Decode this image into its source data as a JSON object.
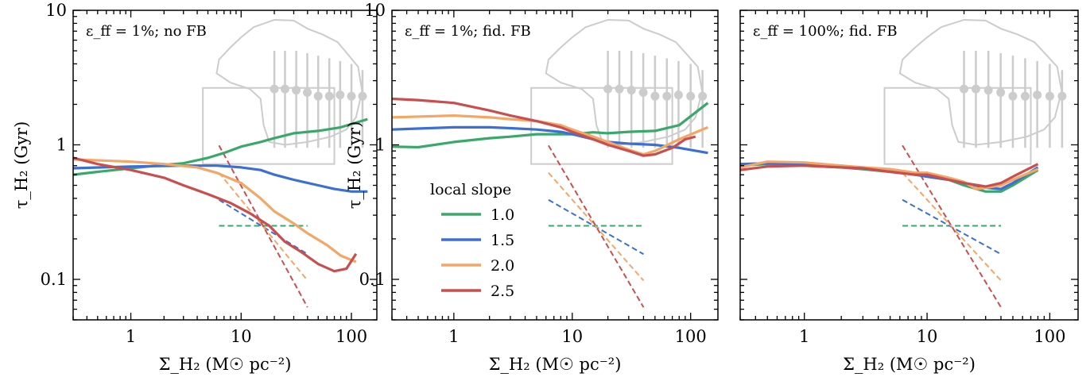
{
  "chart_data": [
    {
      "type": "line",
      "label": "ε_ff = 1%; no FB",
      "xlabel": "Σ_H₂ (M☉ pc⁻²)",
      "ylabel": "τ_H₂ (Gyr)",
      "xscale": "log",
      "yscale": "log",
      "xlim": [
        0.3,
        170
      ],
      "ylim": [
        0.05,
        10
      ],
      "x_ticks": [
        1,
        10,
        100
      ],
      "x_tick_labels": [
        "1",
        "10",
        "100"
      ],
      "y_ticks": [
        0.1,
        1,
        10
      ],
      "y_tick_labels": [
        "0.1",
        "1",
        "10"
      ],
      "series": [
        {
          "slope": "1.0",
          "color": "#3aa86b",
          "points": [
            [
              0.3,
              0.6
            ],
            [
              0.5,
              0.63
            ],
            [
              1,
              0.67
            ],
            [
              2,
              0.71
            ],
            [
              3,
              0.73
            ],
            [
              5,
              0.8
            ],
            [
              7,
              0.87
            ],
            [
              10,
              0.97
            ],
            [
              15,
              1.05
            ],
            [
              20,
              1.12
            ],
            [
              30,
              1.22
            ],
            [
              50,
              1.27
            ],
            [
              80,
              1.35
            ],
            [
              140,
              1.55
            ]
          ]
        },
        {
          "slope": "1.5",
          "color": "#3b6fd6",
          "points": [
            [
              0.3,
              0.67
            ],
            [
              1,
              0.69
            ],
            [
              3,
              0.7
            ],
            [
              6,
              0.7
            ],
            [
              10,
              0.68
            ],
            [
              15,
              0.65
            ],
            [
              20,
              0.6
            ],
            [
              30,
              0.55
            ],
            [
              50,
              0.5
            ],
            [
              70,
              0.47
            ],
            [
              100,
              0.45
            ],
            [
              140,
              0.45
            ]
          ]
        },
        {
          "slope": "2.0",
          "color": "#f3a766",
          "points": [
            [
              0.3,
              0.78
            ],
            [
              1,
              0.75
            ],
            [
              2,
              0.72
            ],
            [
              4,
              0.68
            ],
            [
              6,
              0.62
            ],
            [
              10,
              0.52
            ],
            [
              15,
              0.4
            ],
            [
              20,
              0.32
            ],
            [
              30,
              0.26
            ],
            [
              40,
              0.22
            ],
            [
              60,
              0.18
            ],
            [
              80,
              0.15
            ],
            [
              110,
              0.135
            ]
          ]
        },
        {
          "slope": "2.5",
          "color": "#c94f4f",
          "points": [
            [
              0.3,
              0.8
            ],
            [
              0.5,
              0.72
            ],
            [
              1,
              0.65
            ],
            [
              2,
              0.57
            ],
            [
              3,
              0.5
            ],
            [
              5,
              0.43
            ],
            [
              8,
              0.37
            ],
            [
              12,
              0.31
            ],
            [
              18,
              0.25
            ],
            [
              25,
              0.19
            ],
            [
              35,
              0.16
            ],
            [
              50,
              0.13
            ],
            [
              70,
              0.115
            ],
            [
              90,
              0.12
            ],
            [
              110,
              0.155
            ]
          ]
        }
      ],
      "reference_lines": [
        {
          "slope": "1.0",
          "color": "#3aa86b",
          "points": [
            [
              6.3,
              0.25
            ],
            [
              40,
              0.25
            ]
          ]
        },
        {
          "slope": "1.5",
          "color": "#3b6fd6",
          "points": [
            [
              6.3,
              0.39
            ],
            [
              40,
              0.154
            ]
          ]
        },
        {
          "slope": "2.0",
          "color": "#f3a766",
          "points": [
            [
              6.3,
              0.62
            ],
            [
              40,
              0.098
            ]
          ]
        },
        {
          "slope": "2.5",
          "color": "#c94f4f",
          "points": [
            [
              6.3,
              0.99
            ],
            [
              40,
              0.062
            ]
          ]
        }
      ]
    },
    {
      "type": "line",
      "label": "ε_ff = 1%; fid. FB",
      "xlabel": "Σ_H₂ (M☉ pc⁻²)",
      "ylabel": "τ_H₂ (Gyr)",
      "xscale": "log",
      "yscale": "log",
      "xlim": [
        0.3,
        170
      ],
      "ylim": [
        0.05,
        10
      ],
      "x_ticks": [
        1,
        10,
        100
      ],
      "x_tick_labels": [
        "1",
        "10",
        "100"
      ],
      "y_ticks": [
        0.1,
        1,
        10
      ],
      "y_tick_labels": [
        "0.1",
        "1",
        "10"
      ],
      "series": [
        {
          "slope": "1.0",
          "color": "#3aa86b",
          "points": [
            [
              0.3,
              0.97
            ],
            [
              0.5,
              0.96
            ],
            [
              1,
              1.05
            ],
            [
              2,
              1.12
            ],
            [
              3,
              1.15
            ],
            [
              5,
              1.2
            ],
            [
              7,
              1.2
            ],
            [
              10,
              1.2
            ],
            [
              15,
              1.24
            ],
            [
              20,
              1.22
            ],
            [
              30,
              1.25
            ],
            [
              50,
              1.27
            ],
            [
              80,
              1.4
            ],
            [
              140,
              2.05
            ]
          ]
        },
        {
          "slope": "1.5",
          "color": "#3b6fd6",
          "points": [
            [
              0.3,
              1.3
            ],
            [
              1,
              1.35
            ],
            [
              2,
              1.35
            ],
            [
              3,
              1.33
            ],
            [
              5,
              1.3
            ],
            [
              8,
              1.25
            ],
            [
              10,
              1.2
            ],
            [
              15,
              1.1
            ],
            [
              20,
              1.05
            ],
            [
              30,
              1.02
            ],
            [
              50,
              1.0
            ],
            [
              80,
              0.95
            ],
            [
              140,
              0.87
            ]
          ]
        },
        {
          "slope": "2.0",
          "color": "#f3a766",
          "points": [
            [
              0.3,
              1.6
            ],
            [
              1,
              1.65
            ],
            [
              2,
              1.6
            ],
            [
              3,
              1.55
            ],
            [
              5,
              1.5
            ],
            [
              8,
              1.4
            ],
            [
              10,
              1.3
            ],
            [
              15,
              1.15
            ],
            [
              20,
              1.05
            ],
            [
              30,
              0.92
            ],
            [
              40,
              0.85
            ],
            [
              50,
              0.9
            ],
            [
              80,
              1.1
            ],
            [
              140,
              1.35
            ]
          ]
        },
        {
          "slope": "2.5",
          "color": "#c94f4f",
          "points": [
            [
              0.3,
              2.2
            ],
            [
              0.5,
              2.15
            ],
            [
              1,
              2.05
            ],
            [
              2,
              1.8
            ],
            [
              3,
              1.65
            ],
            [
              5,
              1.5
            ],
            [
              8,
              1.35
            ],
            [
              10,
              1.25
            ],
            [
              15,
              1.1
            ],
            [
              20,
              1.0
            ],
            [
              30,
              0.9
            ],
            [
              40,
              0.83
            ],
            [
              50,
              0.85
            ],
            [
              70,
              0.95
            ],
            [
              90,
              1.1
            ],
            [
              110,
              1.15
            ]
          ]
        }
      ],
      "reference_lines": [
        {
          "slope": "1.0",
          "color": "#3aa86b",
          "points": [
            [
              6.3,
              0.25
            ],
            [
              40,
              0.25
            ]
          ]
        },
        {
          "slope": "1.5",
          "color": "#3b6fd6",
          "points": [
            [
              6.3,
              0.39
            ],
            [
              40,
              0.154
            ]
          ]
        },
        {
          "slope": "2.0",
          "color": "#f3a766",
          "points": [
            [
              6.3,
              0.62
            ],
            [
              40,
              0.098
            ]
          ]
        },
        {
          "slope": "2.5",
          "color": "#c94f4f",
          "points": [
            [
              6.3,
              0.99
            ],
            [
              40,
              0.062
            ]
          ]
        }
      ],
      "legend": {
        "title": "local slope",
        "placement": "lower-left",
        "entries": [
          {
            "label": "1.0",
            "color": "#3aa86b"
          },
          {
            "label": "1.5",
            "color": "#3b6fd6"
          },
          {
            "label": "2.0",
            "color": "#f3a766"
          },
          {
            "label": "2.5",
            "color": "#c94f4f"
          }
        ]
      }
    },
    {
      "type": "line",
      "label": "ε_ff = 100%; fid. FB",
      "xlabel": "Σ_H₂ (M☉ pc⁻²)",
      "xscale": "log",
      "yscale": "log",
      "xlim": [
        0.3,
        170
      ],
      "ylim": [
        0.05,
        10
      ],
      "x_ticks": [
        1,
        10,
        100
      ],
      "x_tick_labels": [
        "1",
        "10",
        "100"
      ],
      "series": [
        {
          "slope": "1.0",
          "color": "#3aa86b",
          "points": [
            [
              0.3,
              0.7
            ],
            [
              0.5,
              0.72
            ],
            [
              1,
              0.7
            ],
            [
              2,
              0.68
            ],
            [
              3,
              0.66
            ],
            [
              5,
              0.63
            ],
            [
              8,
              0.6
            ],
            [
              10,
              0.58
            ],
            [
              15,
              0.55
            ],
            [
              20,
              0.5
            ],
            [
              30,
              0.45
            ],
            [
              40,
              0.45
            ],
            [
              50,
              0.5
            ],
            [
              80,
              0.65
            ]
          ]
        },
        {
          "slope": "1.5",
          "color": "#3b6fd6",
          "points": [
            [
              0.3,
              0.72
            ],
            [
              0.5,
              0.73
            ],
            [
              1,
              0.72
            ],
            [
              2,
              0.7
            ],
            [
              3,
              0.67
            ],
            [
              5,
              0.64
            ],
            [
              8,
              0.6
            ],
            [
              10,
              0.58
            ],
            [
              15,
              0.55
            ],
            [
              20,
              0.52
            ],
            [
              30,
              0.48
            ],
            [
              40,
              0.47
            ],
            [
              50,
              0.52
            ],
            [
              80,
              0.68
            ]
          ]
        },
        {
          "slope": "2.0",
          "color": "#f3a766",
          "points": [
            [
              0.3,
              0.68
            ],
            [
              0.5,
              0.75
            ],
            [
              1,
              0.74
            ],
            [
              2,
              0.7
            ],
            [
              3,
              0.68
            ],
            [
              5,
              0.66
            ],
            [
              8,
              0.62
            ],
            [
              10,
              0.62
            ],
            [
              15,
              0.57
            ],
            [
              20,
              0.53
            ],
            [
              25,
              0.47
            ],
            [
              30,
              0.48
            ],
            [
              40,
              0.5
            ],
            [
              50,
              0.55
            ],
            [
              80,
              0.66
            ]
          ]
        },
        {
          "slope": "2.5",
          "color": "#c94f4f",
          "points": [
            [
              0.3,
              0.65
            ],
            [
              0.5,
              0.69
            ],
            [
              1,
              0.7
            ],
            [
              2,
              0.68
            ],
            [
              3,
              0.67
            ],
            [
              5,
              0.63
            ],
            [
              8,
              0.6
            ],
            [
              10,
              0.6
            ],
            [
              15,
              0.55
            ],
            [
              20,
              0.52
            ],
            [
              30,
              0.49
            ],
            [
              40,
              0.52
            ],
            [
              50,
              0.58
            ],
            [
              80,
              0.72
            ]
          ]
        }
      ],
      "reference_lines": [
        {
          "slope": "1.0",
          "color": "#3aa86b",
          "points": [
            [
              6.3,
              0.25
            ],
            [
              40,
              0.25
            ]
          ]
        },
        {
          "slope": "1.5",
          "color": "#3b6fd6",
          "points": [
            [
              6.3,
              0.39
            ],
            [
              40,
              0.154
            ]
          ]
        },
        {
          "slope": "2.0",
          "color": "#f3a766",
          "points": [
            [
              6.3,
              0.62
            ],
            [
              40,
              0.098
            ]
          ]
        },
        {
          "slope": "2.5",
          "color": "#c94f4f",
          "points": [
            [
              6.3,
              0.99
            ],
            [
              40,
              0.062
            ]
          ]
        }
      ]
    }
  ],
  "observations": {
    "color": "#cccccc",
    "points": [
      {
        "x": 20,
        "y": 2.6,
        "lo": 0.95,
        "hi": 5.0
      },
      {
        "x": 25,
        "y": 2.6,
        "lo": 0.95,
        "hi": 5.0
      },
      {
        "x": 31.6,
        "y": 2.55,
        "lo": 0.95,
        "hi": 5.0
      },
      {
        "x": 39.8,
        "y": 2.45,
        "lo": 0.95,
        "hi": 4.8
      },
      {
        "x": 50,
        "y": 2.3,
        "lo": 0.95,
        "hi": 4.6
      },
      {
        "x": 63,
        "y": 2.3,
        "lo": 0.95,
        "hi": 4.4
      },
      {
        "x": 79,
        "y": 2.35,
        "lo": 0.95,
        "hi": 4.2
      },
      {
        "x": 100,
        "y": 2.3,
        "lo": 0.95,
        "hi": 4.0
      },
      {
        "x": 126,
        "y": 2.3,
        "lo": 0.95,
        "hi": 3.6
      }
    ],
    "box": {
      "x": [
        4.5,
        70
      ],
      "y": [
        0.72,
        2.65
      ]
    },
    "contour": [
      [
        13,
        7.5
      ],
      [
        20,
        8.5
      ],
      [
        30,
        8.4
      ],
      [
        40,
        7.3
      ],
      [
        55,
        6.6
      ],
      [
        75,
        5.8
      ],
      [
        95,
        4.6
      ],
      [
        115,
        3.8
      ],
      [
        125,
        2.5
      ],
      [
        110,
        1.6
      ],
      [
        90,
        1.3
      ],
      [
        65,
        1.15
      ],
      [
        40,
        1.05
      ],
      [
        25,
        1.0
      ],
      [
        18,
        1.05
      ],
      [
        16,
        1.4
      ],
      [
        15,
        2.2
      ],
      [
        12,
        2.6
      ],
      [
        8,
        2.9
      ],
      [
        6,
        3.4
      ],
      [
        6.3,
        4.3
      ],
      [
        8,
        5.3
      ],
      [
        10,
        6.3
      ]
    ]
  }
}
